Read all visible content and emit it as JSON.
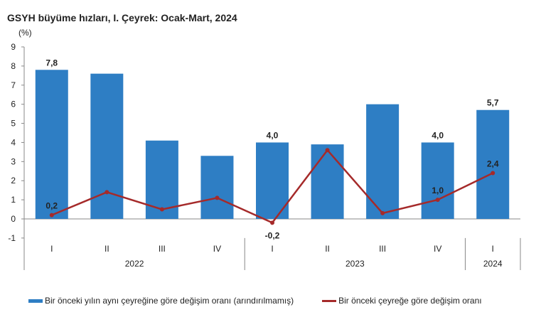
{
  "chart_data": {
    "type": "bar",
    "title": "GSYH büyüme hızları, I. Çeyrek: Ocak-Mart, 2024",
    "ylabel": "(%)",
    "ylim": [
      -1,
      9
    ],
    "yticks": [
      -1,
      0,
      1,
      2,
      3,
      4,
      5,
      6,
      7,
      8,
      9
    ],
    "categories": [
      "I",
      "II",
      "III",
      "IV",
      "I",
      "II",
      "III",
      "IV",
      "I"
    ],
    "groups": [
      {
        "label": "2022",
        "count": 4
      },
      {
        "label": "2023",
        "count": 4
      },
      {
        "label": "2024",
        "count": 1
      }
    ],
    "legend_position": "bottom",
    "series": [
      {
        "name": "Bir önceki yılın aynı çeyreğine göre değişim oranı (arındırılmamış)",
        "kind": "bar",
        "color": "#2E7EC4",
        "values": [
          7.8,
          7.6,
          4.1,
          3.3,
          4.0,
          3.9,
          6.0,
          4.0,
          5.7
        ],
        "data_labels": [
          "7,8",
          null,
          null,
          null,
          "4,0",
          null,
          null,
          "4,0",
          "5,7"
        ]
      },
      {
        "name": "Bir önceki çeyreğe göre değişim oranı",
        "kind": "line",
        "color": "#A52A2A",
        "values": [
          0.2,
          1.4,
          0.5,
          1.1,
          -0.2,
          3.6,
          0.3,
          1.0,
          2.4
        ],
        "data_labels": [
          "0,2",
          null,
          null,
          null,
          "-0,2",
          null,
          null,
          "1,0",
          "2,4"
        ]
      }
    ]
  }
}
